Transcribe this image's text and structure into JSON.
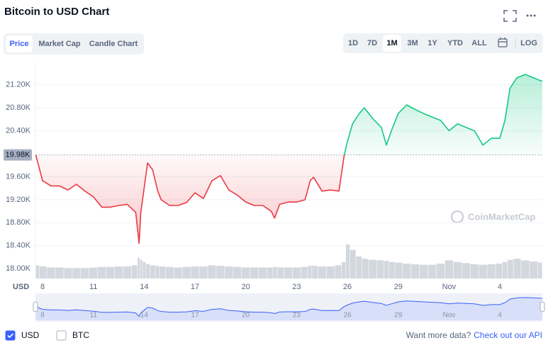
{
  "header": {
    "title": "Bitcoin to USD Chart"
  },
  "tabs": [
    "Price",
    "Market Cap",
    "Candle Chart"
  ],
  "active_tab": "Price",
  "ranges": [
    "1D",
    "7D",
    "1M",
    "3M",
    "1Y",
    "YTD",
    "ALL"
  ],
  "active_range": "1M",
  "log_button": "LOG",
  "chart_data": {
    "type": "line",
    "y_axis_label": "USD",
    "watermark": "CoinMarketCap",
    "x": [
      7.6,
      8,
      8.5,
      9,
      9.5,
      10,
      10.5,
      11,
      11.5,
      12,
      12.5,
      13,
      13.5,
      13.7,
      13.8,
      14,
      14.2,
      14.5,
      14.8,
      15,
      15.5,
      16,
      16.5,
      17,
      17.5,
      18,
      18.5,
      19,
      19.5,
      20,
      20.5,
      21,
      21.5,
      21.7,
      22,
      22.5,
      23,
      23.5,
      23.8,
      24,
      24.5,
      25,
      25.5,
      25.8,
      26,
      26.3,
      26.7,
      27,
      27.5,
      28,
      28.3,
      28.6,
      29,
      29.5,
      30,
      30.5,
      31,
      31.5,
      32,
      32.5,
      33,
      33.5,
      34,
      34.5,
      35,
      35.3,
      35.6,
      36,
      36.5,
      37,
      37.5
    ],
    "values": [
      19980,
      19530,
      19440,
      19440,
      19370,
      19470,
      19350,
      19250,
      19070,
      19070,
      19100,
      19120,
      18980,
      18440,
      18980,
      19410,
      19840,
      19720,
      19350,
      19200,
      19100,
      19100,
      19150,
      19320,
      19220,
      19530,
      19620,
      19370,
      19280,
      19160,
      19100,
      19100,
      19000,
      18880,
      19120,
      19160,
      19160,
      19200,
      19530,
      19590,
      19350,
      19370,
      19350,
      19960,
      20210,
      20520,
      20700,
      20800,
      20610,
      20460,
      20150,
      20400,
      20700,
      20850,
      20770,
      20700,
      20640,
      20580,
      20400,
      20520,
      20460,
      20400,
      20150,
      20270,
      20270,
      20580,
      21140,
      21320,
      21380,
      21320,
      21260
    ],
    "volume": [
      24,
      22,
      20,
      20,
      19,
      19,
      19,
      20,
      21,
      21,
      22,
      22,
      24,
      38,
      34,
      30,
      26,
      24,
      23,
      22,
      21,
      20,
      21,
      22,
      22,
      24,
      23,
      22,
      21,
      20,
      20,
      20,
      20,
      21,
      20,
      20,
      20,
      21,
      23,
      23,
      22,
      22,
      24,
      30,
      62,
      52,
      40,
      36,
      34,
      33,
      32,
      30,
      29,
      27,
      26,
      25,
      25,
      27,
      33,
      30,
      28,
      26,
      25,
      26,
      27,
      30,
      34,
      36,
      33,
      31,
      29
    ],
    "baseline": {
      "value": 19980,
      "label": "19.98K"
    },
    "up_color": "#16c784",
    "down_color": "#ea3943",
    "volume_color": "#d3d7de",
    "navigator_color": "#3861fb",
    "xlim": [
      7.58,
      37.51
    ],
    "xticks": [
      8,
      11,
      14,
      17,
      20,
      23,
      26,
      29,
      {
        "value": 32,
        "label": "Nov"
      },
      {
        "value": 35,
        "label": "4"
      }
    ],
    "ylim": [
      17830,
      21590
    ],
    "yticks": [
      {
        "value": 18000,
        "label": "18.00K"
      },
      {
        "value": 18400,
        "label": "18.40K"
      },
      {
        "value": 18800,
        "label": "18.80K"
      },
      {
        "value": 19200,
        "label": "19.20K"
      },
      {
        "value": 19600,
        "label": "19.60K"
      },
      {
        "value": 20400,
        "label": "20.40K"
      },
      {
        "value": 20800,
        "label": "20.80K"
      },
      {
        "value": 21200,
        "label": "21.20K"
      }
    ],
    "grid": true
  },
  "footer": {
    "currencies": [
      {
        "label": "USD",
        "checked": true
      },
      {
        "label": "BTC",
        "checked": false
      }
    ],
    "prompt": "Want more data?",
    "link": "Check out our API"
  }
}
